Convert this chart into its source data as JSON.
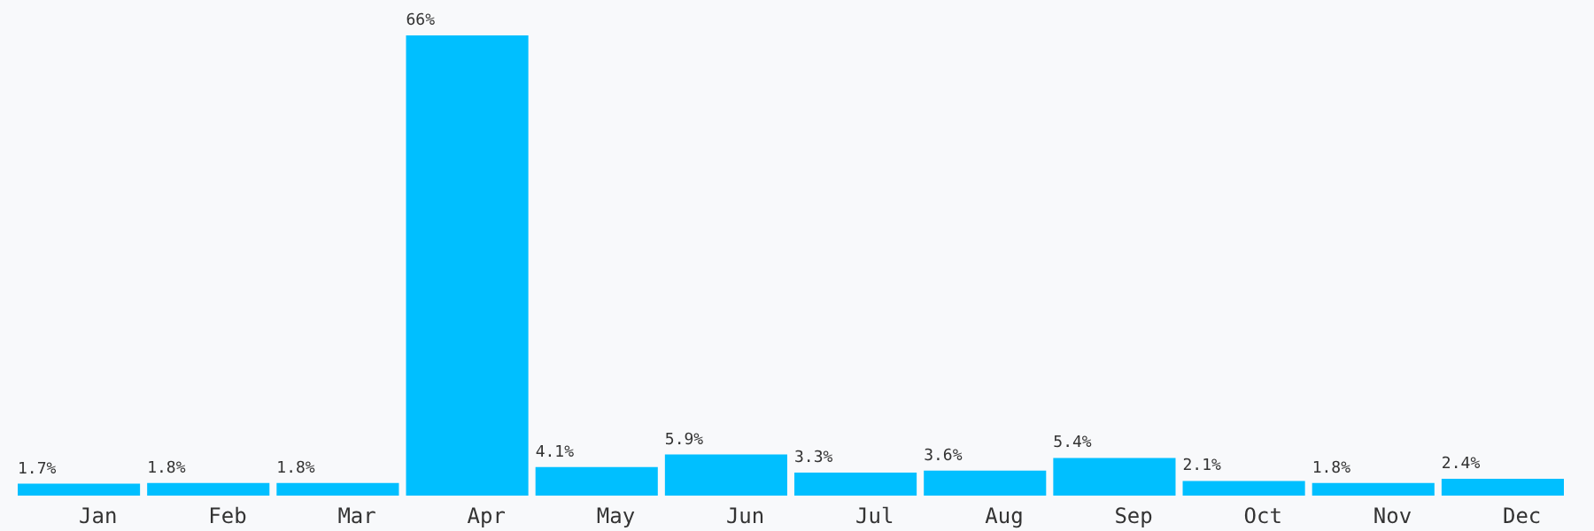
{
  "chart_data": {
    "type": "bar",
    "categories": [
      "Jan",
      "Feb",
      "Mar",
      "Apr",
      "May",
      "Jun",
      "Jul",
      "Aug",
      "Sep",
      "Oct",
      "Nov",
      "Dec"
    ],
    "values": [
      1.7,
      1.8,
      1.8,
      66,
      4.1,
      5.9,
      3.3,
      3.6,
      5.4,
      2.1,
      1.8,
      2.4
    ],
    "value_labels": [
      "1.7%",
      "1.8%",
      "1.8%",
      "66%",
      "4.1%",
      "5.9%",
      "3.3%",
      "3.6%",
      "5.4%",
      "2.1%",
      "1.8%",
      "2.4%"
    ],
    "color": "#00bfff"
  }
}
